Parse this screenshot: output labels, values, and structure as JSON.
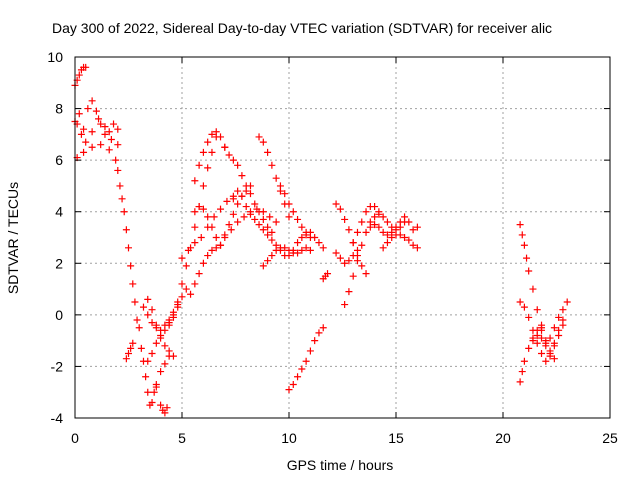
{
  "chart_data": {
    "type": "scatter",
    "title": "Day 300 of 2022, Sidereal Day-to-day VTEC variation (SDTVAR) for receiver alic",
    "xlabel": "GPS time / hours",
    "ylabel": "SDTVAR / TECUs",
    "xlim": [
      0,
      25
    ],
    "ylim": [
      -4,
      10
    ],
    "xticks": [
      "0",
      "5",
      "10",
      "15",
      "20",
      "25"
    ],
    "yticks": [
      "-4",
      "-2",
      "0",
      "2",
      "4",
      "6",
      "8",
      "10"
    ],
    "grid": true,
    "marker": "plus",
    "color": "#ff0000",
    "series": [
      {
        "x": [
          0.0,
          0.1,
          0.2,
          0.3,
          0.4,
          0.5
        ],
        "y": [
          8.9,
          9.1,
          9.3,
          9.5,
          9.6,
          9.6
        ]
      },
      {
        "x": [
          0.0,
          0.2,
          0.4,
          0.6,
          0.8,
          1.0,
          1.2,
          1.4,
          1.6,
          1.8,
          2.0
        ],
        "y": [
          7.5,
          7.8,
          7.2,
          8.0,
          8.3,
          7.9,
          7.4,
          7.0,
          7.1,
          7.4,
          7.2
        ]
      },
      {
        "x": [
          0.1,
          0.4,
          0.8,
          1.2,
          1.6,
          1.9
        ],
        "y": [
          6.1,
          6.3,
          6.5,
          6.6,
          6.4,
          6.0
        ]
      },
      {
        "x": [
          0.1,
          0.3,
          0.5,
          0.8,
          1.1,
          1.4,
          1.7,
          2.0
        ],
        "y": [
          7.4,
          7.0,
          6.7,
          7.1,
          7.6,
          7.3,
          6.8,
          6.6
        ]
      },
      {
        "x": [
          2.0,
          2.1,
          2.2,
          2.3,
          2.4,
          2.5,
          2.6,
          2.7,
          2.8,
          2.9,
          3.0
        ],
        "y": [
          5.6,
          5.0,
          4.5,
          4.0,
          3.3,
          2.6,
          1.9,
          1.2,
          0.5,
          -0.2,
          -0.5
        ]
      },
      {
        "x": [
          2.4,
          2.5,
          2.6,
          2.7
        ],
        "y": [
          -1.7,
          -1.5,
          -1.3,
          -1.1
        ]
      },
      {
        "x": [
          3.1,
          3.2,
          3.3,
          3.4,
          3.5,
          3.6,
          3.7,
          3.8
        ],
        "y": [
          -1.3,
          -1.8,
          -2.4,
          -3.0,
          -3.5,
          -3.4,
          -3.0,
          -2.8
        ]
      },
      {
        "x": [
          3.8,
          4.0,
          4.2,
          4.4
        ],
        "y": [
          -2.7,
          -2.2,
          -1.9,
          -1.6
        ]
      },
      {
        "x": [
          4.0,
          4.1,
          4.2,
          4.3
        ],
        "y": [
          -3.5,
          -3.7,
          -3.8,
          -3.6
        ]
      },
      {
        "x": [
          3.2,
          3.4,
          3.6,
          3.8,
          4.0,
          4.2,
          4.4,
          4.6,
          4.8
        ],
        "y": [
          0.3,
          0.0,
          -0.3,
          -0.5,
          -0.6,
          -0.4,
          -0.2,
          0.1,
          0.4
        ]
      },
      {
        "x": [
          3.4,
          3.6,
          3.8,
          4.0,
          4.2,
          4.4,
          4.6
        ],
        "y": [
          0.6,
          0.2,
          -0.4,
          -0.9,
          -1.2,
          -1.4,
          -1.6
        ]
      },
      {
        "x": [
          3.4,
          3.6,
          3.8,
          4.0,
          4.2,
          4.4,
          4.6,
          4.8,
          5.0,
          5.2
        ],
        "y": [
          -1.8,
          -1.5,
          -1.1,
          -0.8,
          -0.6,
          -0.4,
          -0.1,
          0.3,
          0.7,
          1.0
        ]
      },
      {
        "x": [
          4.4,
          4.6,
          4.8,
          5.0,
          5.2,
          5.4,
          5.6,
          5.8,
          6.0,
          6.2,
          6.4,
          6.6
        ],
        "y": [
          -0.3,
          0.0,
          0.5,
          1.2,
          1.9,
          2.6,
          3.4,
          4.2,
          5.0,
          5.7,
          6.3,
          6.9
        ]
      },
      {
        "x": [
          5.6,
          5.8,
          6.0,
          6.2,
          6.4,
          6.6,
          6.8,
          7.0
        ],
        "y": [
          5.2,
          5.8,
          6.3,
          6.7,
          7.0,
          7.1,
          6.9,
          6.5
        ]
      },
      {
        "x": [
          5.4,
          5.6,
          5.8,
          6.0,
          6.2,
          6.4,
          6.6,
          6.8
        ],
        "y": [
          0.8,
          1.2,
          1.6,
          2.0,
          2.3,
          2.5,
          2.6,
          2.7
        ]
      },
      {
        "x": [
          5.0,
          5.3,
          5.6,
          5.9,
          6.2,
          6.5,
          6.8,
          7.1,
          7.4
        ],
        "y": [
          2.2,
          2.5,
          2.8,
          3.0,
          3.4,
          3.8,
          4.1,
          4.4,
          4.6
        ]
      },
      {
        "x": [
          5.6,
          5.8,
          6.0,
          6.2,
          6.4,
          6.6
        ],
        "y": [
          4.0,
          4.2,
          4.1,
          3.8,
          3.4,
          3.0
        ]
      },
      {
        "x": [
          7.0,
          7.2,
          7.4,
          7.6,
          7.8,
          8.0,
          8.2,
          8.4,
          8.6,
          8.8,
          9.0,
          9.2
        ],
        "y": [
          6.5,
          6.2,
          6.0,
          5.8,
          5.4,
          5.0,
          4.7,
          4.3,
          4.0,
          3.7,
          3.4,
          3.2
        ]
      },
      {
        "x": [
          6.8,
          7.0,
          7.2,
          7.4,
          7.6,
          7.8,
          8.0,
          8.2
        ],
        "y": [
          2.7,
          3.1,
          3.5,
          3.9,
          4.3,
          4.6,
          4.8,
          5.0
        ]
      },
      {
        "x": [
          7.4,
          7.6,
          7.8,
          8.0,
          8.2,
          8.4,
          8.6,
          8.8,
          9.0,
          9.2,
          9.4,
          9.6,
          9.8
        ],
        "y": [
          4.5,
          4.8,
          4.6,
          4.2,
          3.9,
          3.7,
          3.5,
          3.3,
          3.1,
          2.9,
          2.7,
          2.5,
          2.3
        ]
      },
      {
        "x": [
          7.0,
          7.3,
          7.6,
          7.9,
          8.2,
          8.5,
          8.8,
          9.1,
          9.4
        ],
        "y": [
          3.0,
          3.3,
          3.6,
          3.8,
          4.0,
          4.1,
          4.0,
          3.8,
          3.6
        ]
      },
      {
        "x": [
          8.6,
          8.8,
          9.0,
          9.2,
          9.4,
          9.6,
          9.8,
          10.0
        ],
        "y": [
          6.9,
          6.7,
          6.3,
          5.8,
          5.3,
          4.8,
          4.3,
          3.8
        ]
      },
      {
        "x": [
          8.8,
          9.0,
          9.2,
          9.4,
          9.6,
          9.8,
          10.0,
          10.2,
          10.4,
          10.6,
          10.8,
          11.0
        ],
        "y": [
          1.9,
          2.1,
          2.3,
          2.5,
          2.6,
          2.6,
          2.5,
          2.4,
          2.4,
          2.5,
          2.6,
          2.5
        ]
      },
      {
        "x": [
          9.6,
          9.8,
          10.0,
          10.2,
          10.4,
          10.6,
          10.8,
          11.0
        ],
        "y": [
          5.0,
          4.7,
          4.3,
          4.0,
          3.7,
          3.4,
          3.2,
          3.0
        ]
      },
      {
        "x": [
          10.0,
          10.2,
          10.4,
          10.6,
          10.8,
          11.0,
          11.2,
          11.4,
          11.6
        ],
        "y": [
          2.3,
          2.5,
          2.8,
          3.0,
          3.1,
          3.2,
          3.0,
          2.8,
          2.6
        ]
      },
      {
        "x": [
          11.6,
          11.7,
          11.8
        ],
        "y": [
          1.4,
          1.5,
          1.6
        ]
      },
      {
        "x": [
          10.0,
          10.2,
          10.4,
          10.6,
          10.8,
          11.0,
          11.2,
          11.4,
          11.6
        ],
        "y": [
          -2.9,
          -2.7,
          -2.4,
          -2.1,
          -1.8,
          -1.4,
          -1.0,
          -0.7,
          -0.5
        ]
      },
      {
        "x": [
          12.2,
          12.4,
          12.6,
          12.8,
          13.0,
          13.2,
          13.4,
          13.6
        ],
        "y": [
          4.3,
          4.1,
          3.7,
          3.3,
          2.8,
          2.3,
          1.9,
          1.6
        ]
      },
      {
        "x": [
          12.2,
          12.4,
          12.6,
          12.8,
          13.0,
          13.2
        ],
        "y": [
          2.4,
          2.2,
          2.0,
          2.1,
          2.3,
          2.5
        ]
      },
      {
        "x": [
          12.6,
          12.8,
          13.0,
          13.2,
          13.4,
          13.6,
          13.8,
          14.0,
          14.2
        ],
        "y": [
          0.4,
          0.9,
          1.5,
          2.1,
          2.7,
          3.2,
          3.6,
          3.8,
          3.9
        ]
      },
      {
        "x": [
          13.0,
          13.2,
          13.4,
          13.6,
          13.8,
          14.0,
          14.2,
          14.4,
          14.6,
          14.8,
          15.0,
          15.2,
          15.4
        ],
        "y": [
          2.8,
          3.2,
          3.6,
          4.0,
          4.2,
          4.2,
          4.0,
          3.8,
          3.6,
          3.4,
          3.3,
          3.4,
          3.6
        ]
      },
      {
        "x": [
          13.8,
          14.0,
          14.2,
          14.4,
          14.6,
          14.8,
          15.0,
          15.2,
          15.4,
          15.6,
          15.8,
          16.0
        ],
        "y": [
          3.4,
          3.5,
          3.4,
          3.2,
          3.1,
          3.2,
          3.4,
          3.6,
          3.8,
          3.6,
          3.3,
          3.4
        ]
      },
      {
        "x": [
          14.4,
          14.6,
          14.8,
          15.0,
          15.2,
          15.4,
          15.6,
          15.8,
          16.0
        ],
        "y": [
          2.6,
          2.8,
          3.0,
          3.1,
          3.1,
          3.0,
          2.9,
          2.7,
          2.6
        ]
      },
      {
        "x": [
          20.8,
          20.9,
          21.0,
          21.1,
          21.2,
          21.4,
          21.6,
          21.8,
          22.0,
          22.2,
          22.4
        ],
        "y": [
          3.5,
          3.1,
          2.7,
          2.2,
          1.7,
          1.0,
          0.2,
          -0.5,
          -1.1,
          -1.5,
          -1.7
        ]
      },
      {
        "x": [
          20.8,
          21.0,
          21.2,
          21.4,
          21.6,
          21.8,
          22.0,
          22.2,
          22.4,
          22.6,
          22.8
        ],
        "y": [
          0.5,
          0.3,
          -0.1,
          -0.6,
          -1.1,
          -1.5,
          -1.8,
          -1.6,
          -1.2,
          -0.8,
          -0.4
        ]
      },
      {
        "x": [
          20.8,
          20.9,
          21.0,
          21.2,
          21.4,
          21.6,
          21.8
        ],
        "y": [
          -2.6,
          -2.2,
          -1.8,
          -1.3,
          -0.9,
          -0.6,
          -0.4
        ]
      },
      {
        "x": [
          21.4,
          21.6,
          21.8,
          22.0,
          22.2,
          22.4,
          22.6,
          22.8,
          23.0
        ],
        "y": [
          -1.0,
          -0.8,
          -0.9,
          -1.2,
          -0.9,
          -0.5,
          -0.1,
          0.2,
          0.5
        ]
      },
      {
        "x": [
          21.8,
          22.0,
          22.2,
          22.4,
          22.6,
          22.8
        ],
        "y": [
          -0.6,
          -1.0,
          -1.4,
          -1.1,
          -0.6,
          -0.2
        ]
      }
    ]
  }
}
